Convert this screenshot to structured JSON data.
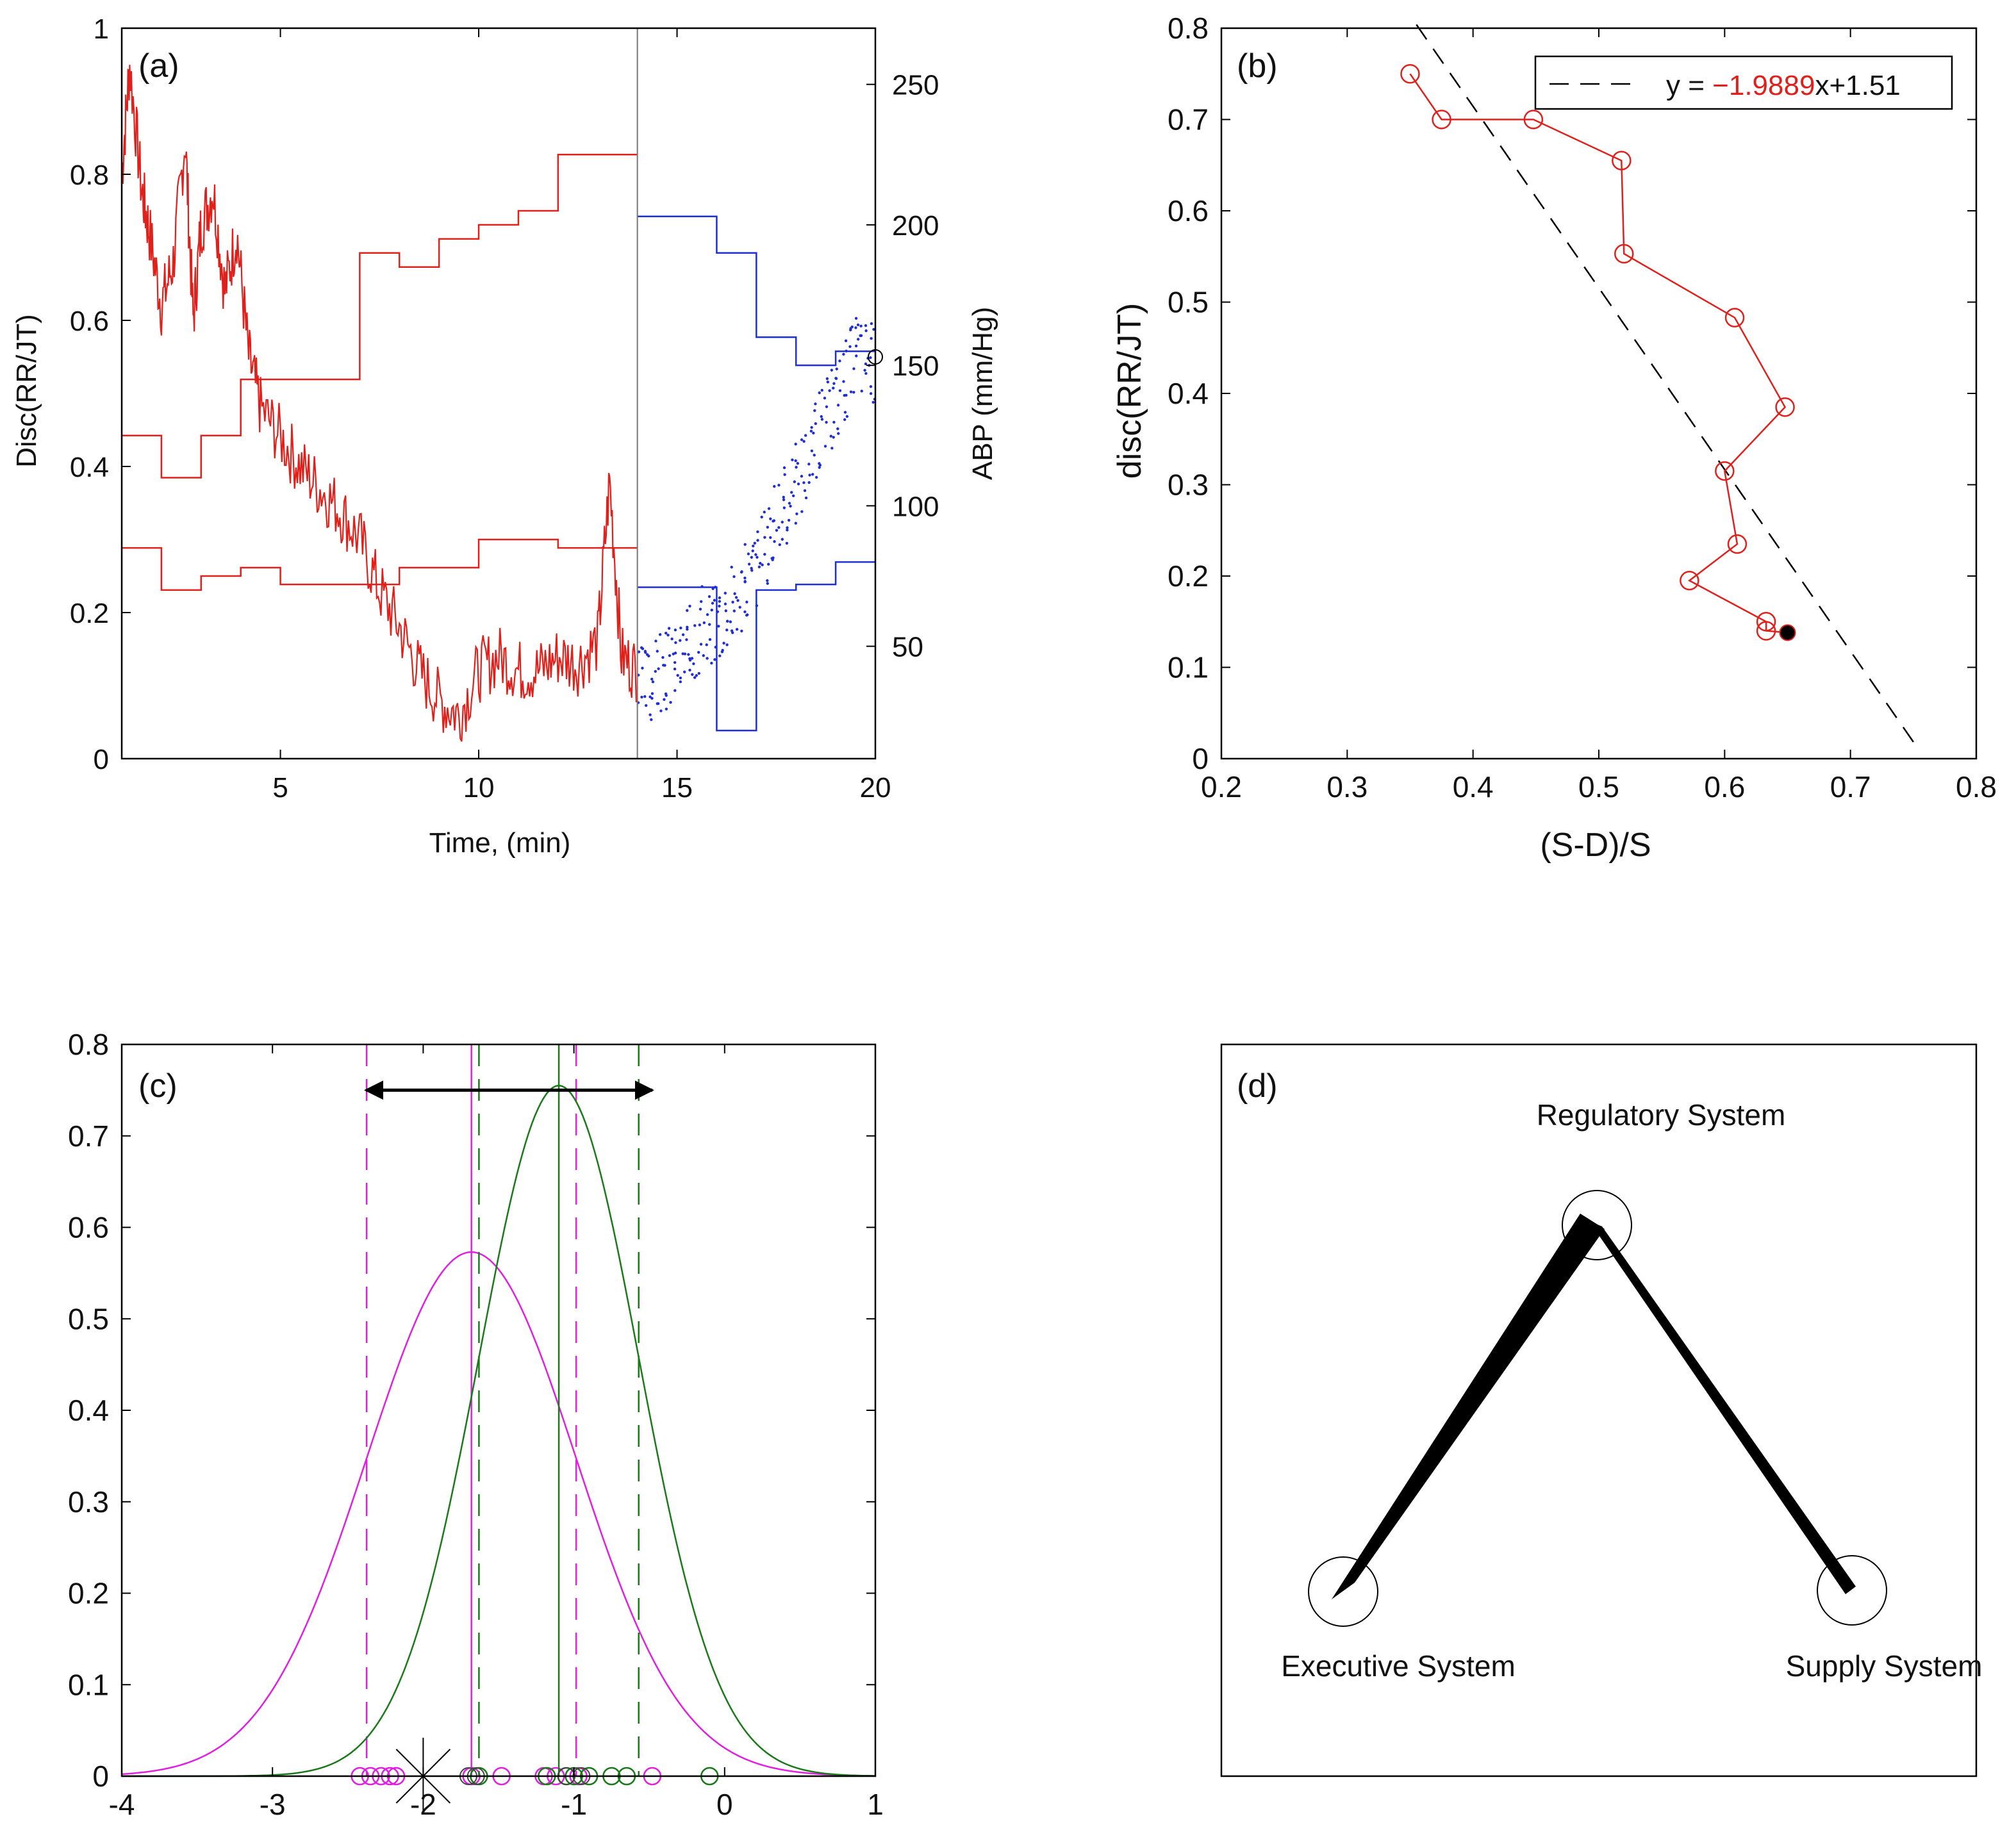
{
  "colors": {
    "red": "#e0201b",
    "blue": "#1f2fd6",
    "magenta": "#e020e0",
    "green": "#1a7a1a",
    "black": "#000000"
  },
  "chart_data": [
    {
      "id": "a",
      "type": "line",
      "panel_label": "(a)",
      "xlabel": "Time, (min)",
      "ylabel": "Disc(RR/JT)",
      "ylabel_right": "ABP (mm/Hg)",
      "xlim": [
        1,
        20
      ],
      "ylim": [
        0,
        1
      ],
      "ylim_right": [
        10,
        270
      ],
      "xticks": [
        5,
        10,
        15,
        20
      ],
      "yticks": [
        0,
        0.2,
        0.4,
        0.6,
        0.8,
        1
      ],
      "yticks_right": [
        50,
        100,
        150,
        200,
        250
      ],
      "divider_x": 14,
      "series": [
        {
          "name": "disc-pre",
          "kind": "noisy-line",
          "axis": "left",
          "x": [
            1,
            1.2,
            1.5,
            1.7,
            2,
            2.3,
            2.6,
            2.8,
            3,
            3.3,
            3.6,
            3.9,
            4.2,
            4.5,
            5,
            5.5,
            6,
            6.5,
            7,
            7.5,
            8,
            8.5,
            9,
            9.5,
            10,
            10.5,
            11,
            11.5,
            12,
            12.5,
            13,
            13.3,
            13.6,
            14
          ],
          "y": [
            0.8,
            0.95,
            0.78,
            0.72,
            0.62,
            0.68,
            0.85,
            0.6,
            0.73,
            0.78,
            0.64,
            0.72,
            0.55,
            0.48,
            0.44,
            0.4,
            0.37,
            0.34,
            0.3,
            0.23,
            0.18,
            0.12,
            0.08,
            0.06,
            0.12,
            0.14,
            0.12,
            0.12,
            0.14,
            0.13,
            0.16,
            0.38,
            0.14,
            0.12
          ]
        },
        {
          "name": "sbp-pre",
          "kind": "step",
          "axis": "right",
          "x": [
            1,
            2,
            3,
            4,
            5,
            6,
            7,
            8,
            9,
            10,
            11,
            12,
            13,
            14
          ],
          "y": [
            125,
            110,
            125,
            145,
            145,
            145,
            190,
            185,
            195,
            200,
            205,
            225,
            225,
            225
          ]
        },
        {
          "name": "dbp-pre",
          "kind": "step",
          "axis": "right",
          "x": [
            1,
            2,
            3,
            4,
            5,
            6,
            7,
            8,
            9,
            10,
            11,
            12,
            13,
            14
          ],
          "y": [
            85,
            70,
            75,
            78,
            72,
            72,
            72,
            78,
            78,
            88,
            88,
            85,
            85,
            85
          ]
        },
        {
          "name": "sbp-post",
          "kind": "step",
          "axis": "right",
          "color": "blue",
          "x": [
            14,
            15,
            16,
            17,
            18,
            19,
            20
          ],
          "y": [
            203,
            203,
            190,
            160,
            150,
            155,
            155
          ]
        },
        {
          "name": "dbp-post",
          "kind": "step",
          "axis": "right",
          "color": "blue",
          "x": [
            14,
            15,
            16,
            17,
            18,
            19,
            20
          ],
          "y": [
            71,
            71,
            20,
            70,
            72,
            80,
            80
          ]
        },
        {
          "name": "disc-post",
          "kind": "dotted",
          "axis": "right",
          "color": "blue",
          "x": [
            14,
            14.5,
            15,
            15.5,
            16,
            16.5,
            17,
            17.5,
            18,
            18.5,
            19,
            19.5,
            20
          ],
          "y": [
            35,
            40,
            45,
            55,
            60,
            68,
            80,
            95,
            110,
            125,
            140,
            155,
            150
          ]
        }
      ]
    },
    {
      "id": "b",
      "type": "line",
      "panel_label": "(b)",
      "xlabel": "(S-D)/S",
      "ylabel": "disc(RR/JT)",
      "xlim": [
        0.2,
        0.8
      ],
      "ylim": [
        0,
        0.8
      ],
      "xticks": [
        0.2,
        0.3,
        0.4,
        0.5,
        0.6,
        0.7,
        0.8
      ],
      "yticks": [
        0,
        0.1,
        0.2,
        0.3,
        0.4,
        0.5,
        0.6,
        0.7,
        0.8
      ],
      "points": [
        {
          "x": 0.35,
          "y": 0.75
        },
        {
          "x": 0.375,
          "y": 0.7
        },
        {
          "x": 0.448,
          "y": 0.7
        },
        {
          "x": 0.518,
          "y": 0.655
        },
        {
          "x": 0.52,
          "y": 0.553
        },
        {
          "x": 0.608,
          "y": 0.483
        },
        {
          "x": 0.648,
          "y": 0.385
        },
        {
          "x": 0.6,
          "y": 0.315
        },
        {
          "x": 0.61,
          "y": 0.235
        },
        {
          "x": 0.572,
          "y": 0.195
        },
        {
          "x": 0.633,
          "y": 0.15
        },
        {
          "x": 0.633,
          "y": 0.14
        },
        {
          "x": 0.65,
          "y": 0.138
        }
      ],
      "fit": {
        "slope": -1.9889,
        "intercept": 1.51,
        "x_range": [
          0.355,
          0.755
        ]
      },
      "legend": {
        "prefix": "y = ",
        "slope_text": "−1.9889",
        "suffix": "x+1.51",
        "position": "top-right"
      }
    },
    {
      "id": "c",
      "type": "line",
      "panel_label": "(c)",
      "xlim": [
        -4,
        1
      ],
      "ylim": [
        0,
        0.8
      ],
      "xticks": [
        -4,
        -3,
        -2,
        -1,
        0,
        1
      ],
      "yticks": [
        0,
        0.1,
        0.2,
        0.3,
        0.4,
        0.5,
        0.6,
        0.7,
        0.8
      ],
      "series": [
        {
          "name": "magenta-gaussian",
          "color": "magenta",
          "mean": -1.68,
          "sd": 0.695,
          "peak": 0.573,
          "sd_lines": [
            -2.375,
            -0.985
          ],
          "samples": [
            -2.42,
            -2.35,
            -2.28,
            -2.22,
            -2.18,
            -1.68,
            -1.48,
            -1.2,
            -1.12,
            -0.97,
            -0.48
          ]
        },
        {
          "name": "green-gaussian",
          "color": "green",
          "mean": -1.1,
          "sd": 0.53,
          "peak": 0.755,
          "sd_lines": [
            -1.63,
            -0.57
          ],
          "samples": [
            -1.63,
            -1.18,
            -1.05,
            -1.0,
            -0.9,
            -0.75,
            -0.65,
            -0.1
          ]
        }
      ],
      "black_samples": [
        -1.7,
        -1.65,
        -1.05,
        -0.95
      ],
      "star_x": -2.0,
      "arrow": {
        "from": -2.38,
        "to": -0.48,
        "y": 0.75
      }
    }
  ],
  "panel_d": {
    "label": "(d)",
    "regulatory": "Regulatory System",
    "executive": "Executive System",
    "supply": "Supply System"
  }
}
